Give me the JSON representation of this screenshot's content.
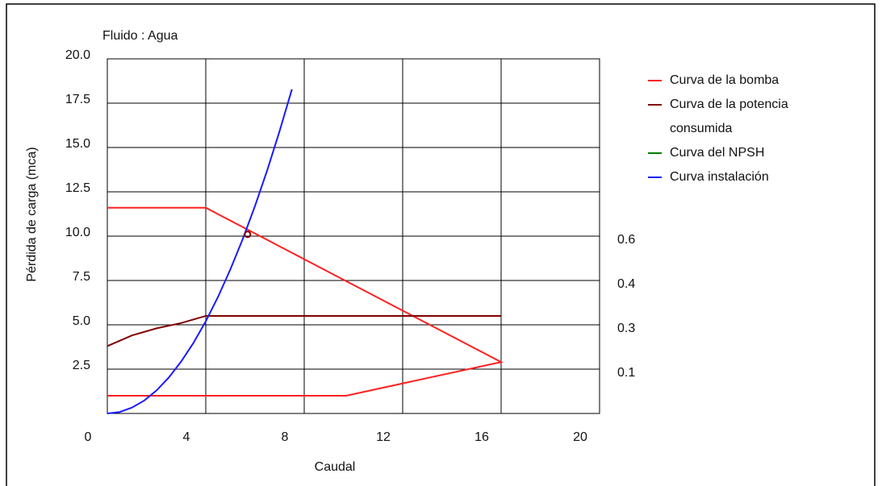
{
  "chart_data": {
    "type": "line",
    "title": "Fluido : Agua",
    "x_label": "Caudal",
    "y_label": "Pérdida de carga (mca)",
    "xlim": [
      0,
      20
    ],
    "ylim": [
      0,
      20
    ],
    "xticks": [
      0,
      4,
      8,
      12,
      16,
      20
    ],
    "yticks": [
      2.5,
      {
        "value": 5,
        "label": "5.0"
      },
      7.5,
      {
        "value": 10,
        "label": "10.0"
      },
      12.5,
      {
        "value": 15,
        "label": "15.0"
      },
      17.5,
      {
        "value": 20,
        "label": "20.0"
      }
    ],
    "y2ticks": [
      0.1,
      0.3,
      0.4,
      0.6
    ],
    "grid": true,
    "legend": "right",
    "series": [
      {
        "name": "Curva de la bomba",
        "color": "#ff2020",
        "x": [
          0,
          4,
          16,
          9.7,
          0
        ],
        "values": [
          11.6,
          11.6,
          2.9,
          1.0,
          1.0
        ]
      },
      {
        "name": "Curva de la potencia consumida",
        "color": "#800000",
        "x": [
          0,
          1,
          2,
          3,
          4,
          16
        ],
        "values": [
          3.8,
          4.4,
          4.8,
          5.1,
          5.5,
          5.5
        ]
      },
      {
        "name": "Curva del NPSH",
        "color": "#008000",
        "x": [],
        "values": []
      },
      {
        "name": "Curva instalación",
        "color": "#1a1aff",
        "x": [
          0,
          0.5,
          1,
          1.5,
          2,
          2.5,
          3,
          3.5,
          4,
          4.5,
          5,
          5.5,
          6,
          6.5,
          7,
          7.5
        ],
        "values": [
          0,
          0.08,
          0.33,
          0.73,
          1.3,
          2.03,
          2.93,
          3.98,
          5.2,
          6.58,
          8.13,
          9.83,
          11.7,
          13.73,
          15.93,
          18.28
        ]
      }
    ],
    "operating_point": {
      "x": 5.7,
      "y": 10.1,
      "color": "#800000"
    }
  }
}
